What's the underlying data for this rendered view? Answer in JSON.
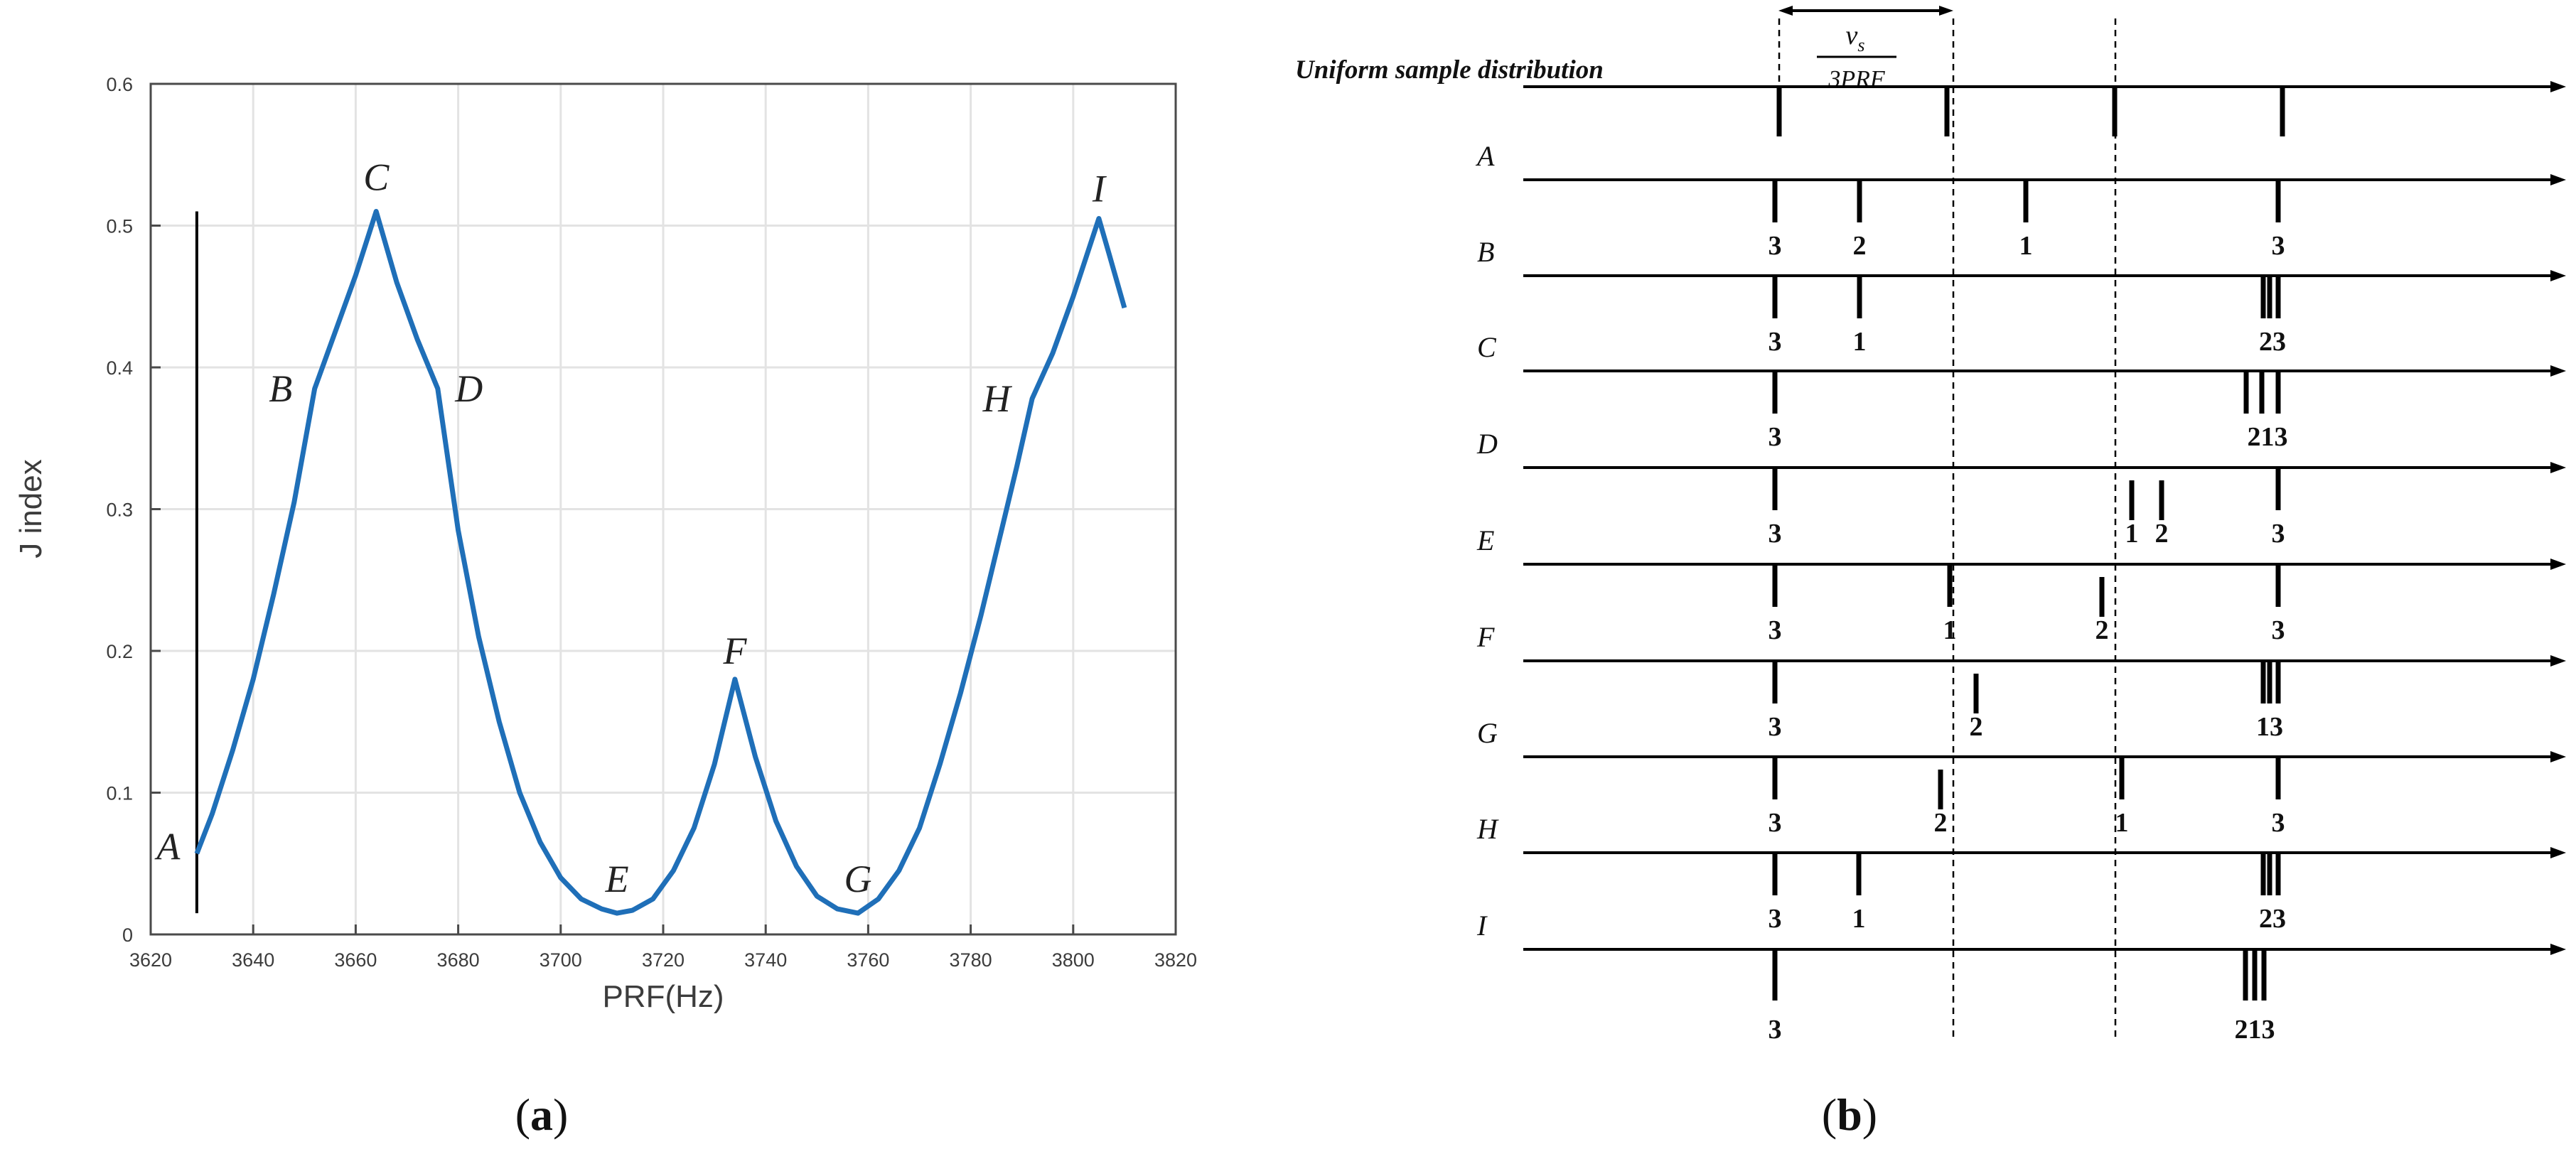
{
  "chart_data": [
    {
      "type": "line",
      "panel": "(a)",
      "xlabel": "PRF(Hz)",
      "ylabel": "J index",
      "xlim": [
        3620,
        3820
      ],
      "ylim": [
        0,
        0.6
      ],
      "xticks": [
        3620,
        3640,
        3660,
        3680,
        3700,
        3720,
        3740,
        3760,
        3780,
        3800,
        3820
      ],
      "yticks": [
        "0",
        "0.1",
        "0.2",
        "0.3",
        "0.4",
        "0.5",
        "0.6"
      ],
      "grid": true,
      "points": [
        {
          "label": "A",
          "x": 3629,
          "y": 0.057
        },
        {
          "label": "B",
          "x": 3652,
          "y": 0.385
        },
        {
          "label": "C",
          "x": 3664,
          "y": 0.51
        },
        {
          "label": "D",
          "x": 3676,
          "y": 0.385
        },
        {
          "label": "E",
          "x": 3711,
          "y": 0.015
        },
        {
          "label": "F",
          "x": 3734,
          "y": 0.18
        },
        {
          "label": "G",
          "x": 3758,
          "y": 0.015
        },
        {
          "label": "H",
          "x": 3792,
          "y": 0.378
        },
        {
          "label": "I",
          "x": 3805,
          "y": 0.505
        }
      ],
      "series": [
        {
          "values": [
            [
              3629,
              0.057
            ],
            [
              3632,
              0.085
            ],
            [
              3636,
              0.13
            ],
            [
              3640,
              0.18
            ],
            [
              3644,
              0.24
            ],
            [
              3648,
              0.305
            ],
            [
              3652,
              0.385
            ],
            [
              3656,
              0.425
            ],
            [
              3660,
              0.465
            ],
            [
              3664,
              0.51
            ],
            [
              3668,
              0.46
            ],
            [
              3672,
              0.42
            ],
            [
              3676,
              0.385
            ],
            [
              3680,
              0.285
            ],
            [
              3684,
              0.21
            ],
            [
              3688,
              0.15
            ],
            [
              3692,
              0.1
            ],
            [
              3696,
              0.065
            ],
            [
              3700,
              0.04
            ],
            [
              3704,
              0.025
            ],
            [
              3708,
              0.018
            ],
            [
              3711,
              0.015
            ],
            [
              3714,
              0.017
            ],
            [
              3718,
              0.025
            ],
            [
              3722,
              0.045
            ],
            [
              3726,
              0.075
            ],
            [
              3730,
              0.12
            ],
            [
              3734,
              0.18
            ],
            [
              3738,
              0.125
            ],
            [
              3742,
              0.08
            ],
            [
              3746,
              0.048
            ],
            [
              3750,
              0.027
            ],
            [
              3754,
              0.018
            ],
            [
              3758,
              0.015
            ],
            [
              3762,
              0.025
            ],
            [
              3766,
              0.045
            ],
            [
              3770,
              0.075
            ],
            [
              3774,
              0.12
            ],
            [
              3778,
              0.17
            ],
            [
              3782,
              0.225
            ],
            [
              3786,
              0.285
            ],
            [
              3789,
              0.33
            ],
            [
              3792,
              0.378
            ],
            [
              3796,
              0.41
            ],
            [
              3800,
              0.45
            ],
            [
              3805,
              0.505
            ],
            [
              3807,
              0.48
            ],
            [
              3810,
              0.442
            ]
          ]
        }
      ],
      "reference_line_x": 3629
    },
    {
      "type": "diagram",
      "panel": "(b)",
      "header": "Uniform sample distribution",
      "spacing_label": {
        "numerator": "v",
        "subscript": "s",
        "denominator": "3PRF"
      },
      "rows": [
        {
          "label": "A",
          "numbers": [
            "3",
            "2",
            "1",
            "3"
          ]
        },
        {
          "label": "B",
          "numbers": [
            "3",
            "1",
            "23"
          ]
        },
        {
          "label": "C",
          "numbers": [
            "3",
            "213"
          ]
        },
        {
          "label": "D",
          "numbers": [
            "3",
            "1",
            "2",
            "3"
          ]
        },
        {
          "label": "E",
          "numbers": [
            "3",
            "1",
            "2",
            "3"
          ]
        },
        {
          "label": "F",
          "numbers": [
            "3",
            "2",
            "13"
          ]
        },
        {
          "label": "G",
          "numbers": [
            "3",
            "2",
            "1",
            "3"
          ]
        },
        {
          "label": "H",
          "numbers": [
            "3",
            "1",
            "23"
          ]
        },
        {
          "label": "I",
          "numbers": [
            "3",
            "213"
          ]
        }
      ]
    }
  ]
}
